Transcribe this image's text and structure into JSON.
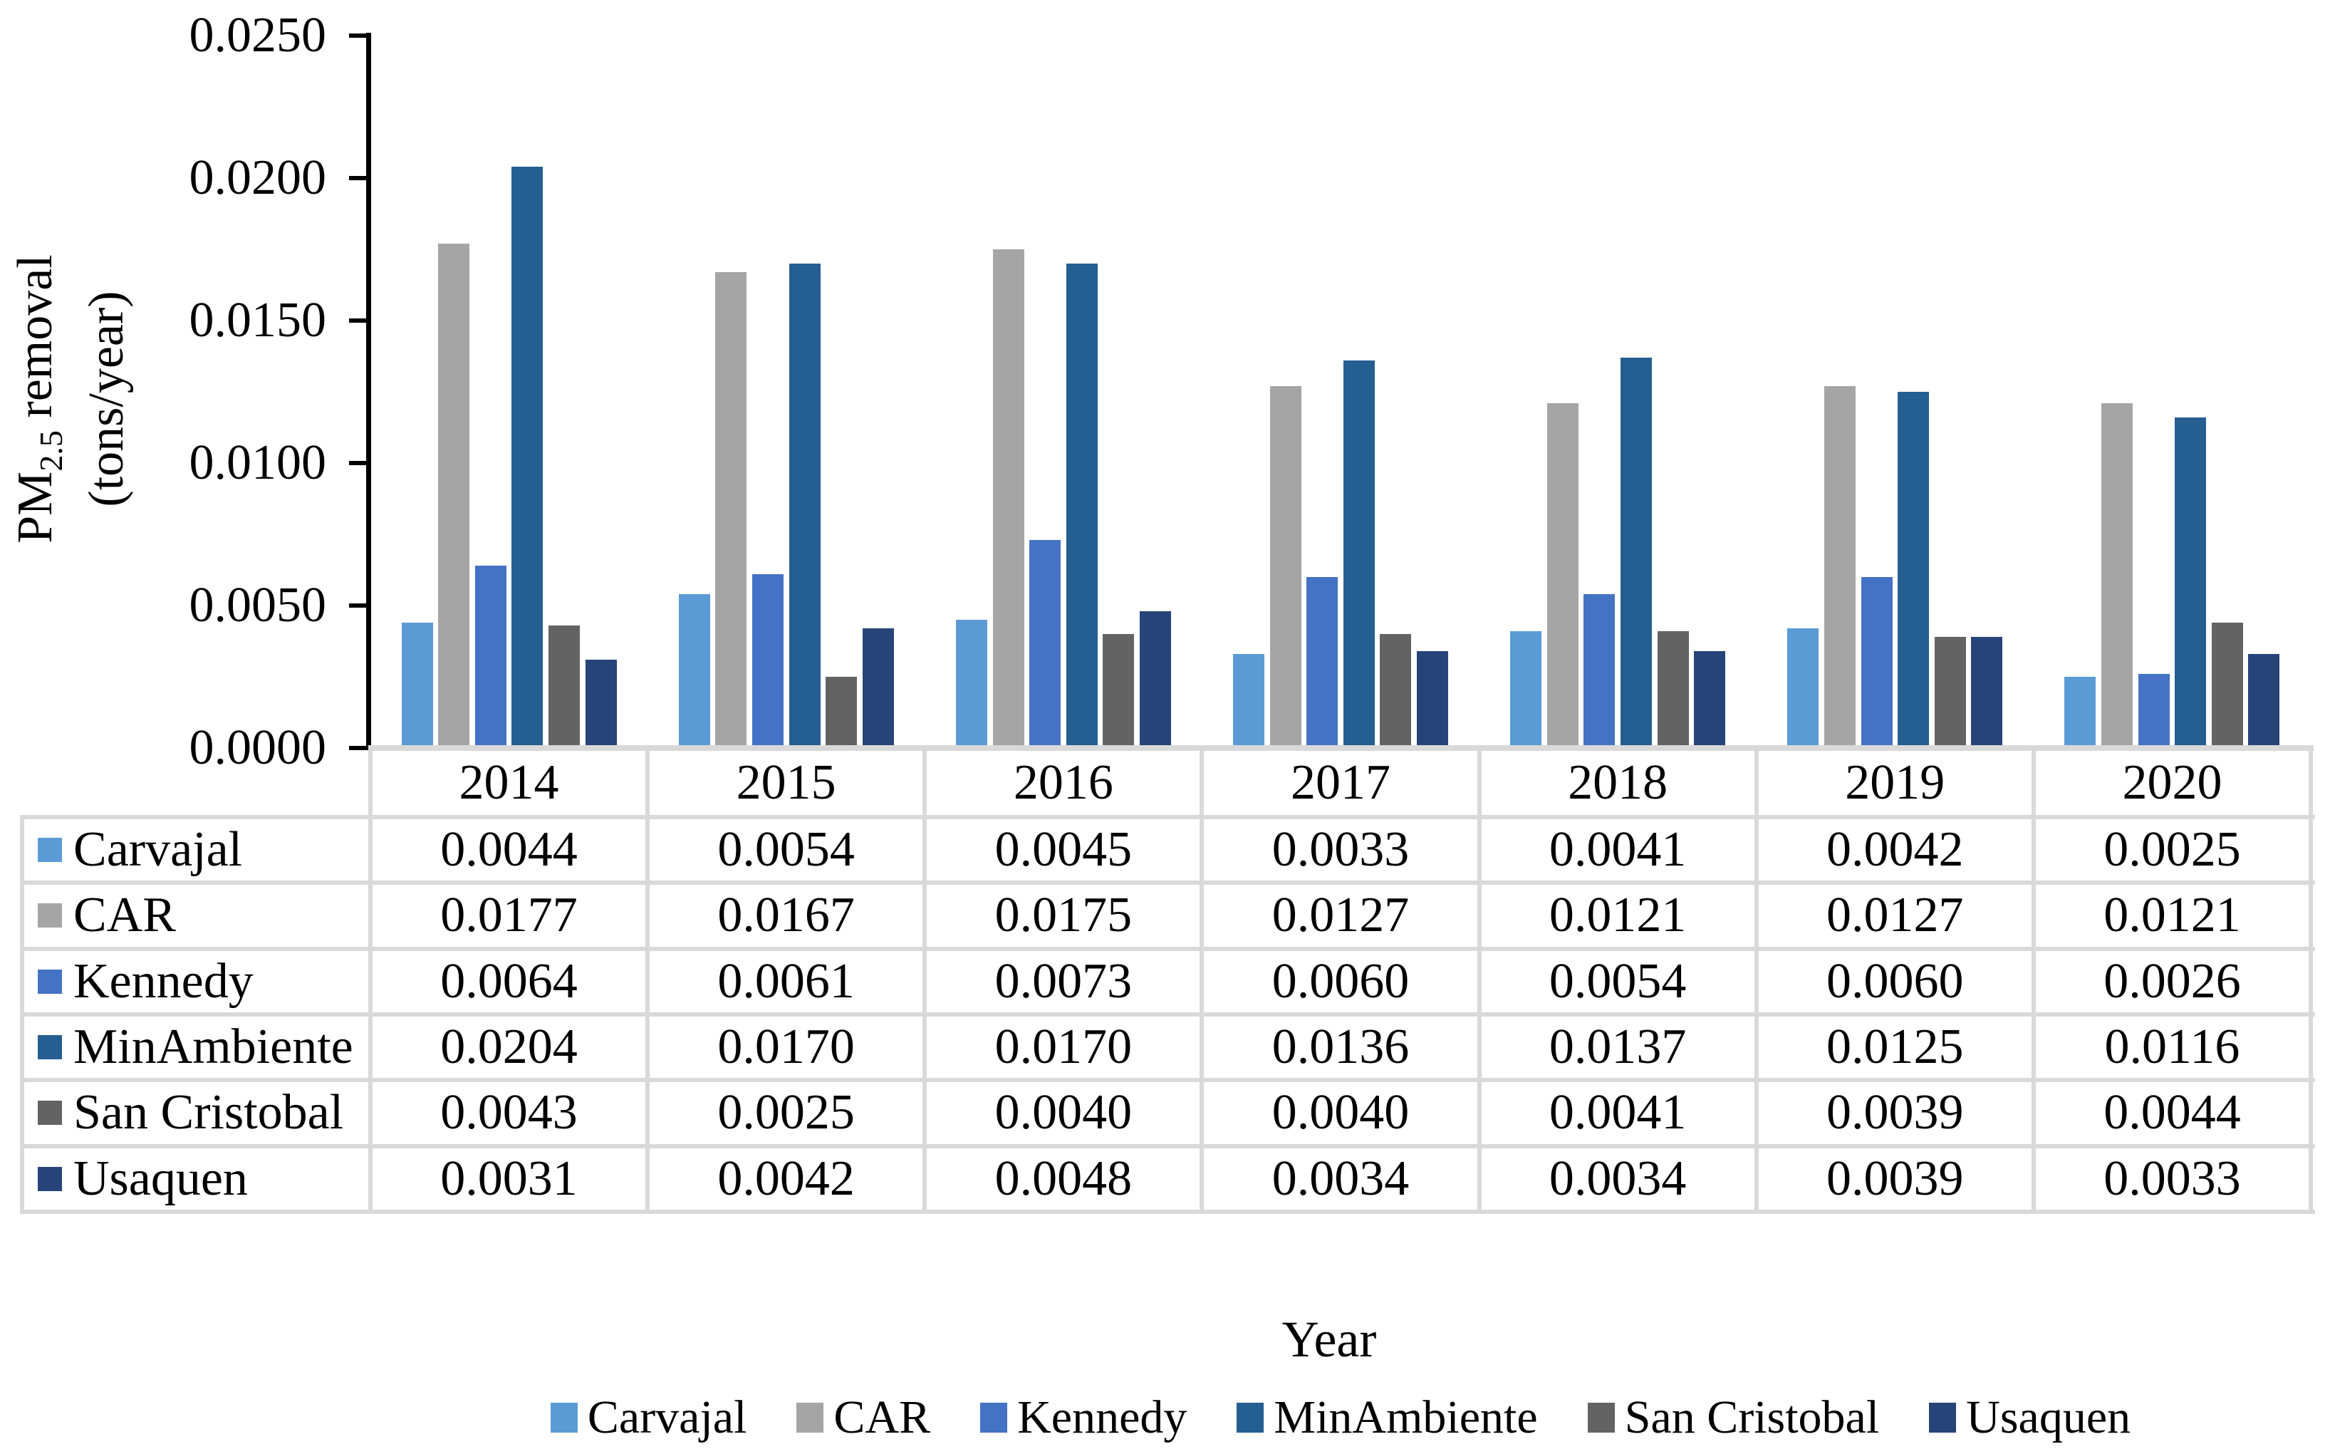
{
  "figure": {
    "y_axis_title_prefix": "PM",
    "y_axis_title_subscript": "2.5",
    "y_axis_title_suffix": " removal",
    "y_axis_title_line2": "(tons/year)",
    "x_axis_title": "Year"
  },
  "chart_data": {
    "type": "bar",
    "title": "",
    "xlabel": "Year",
    "ylabel": "PM2.5 removal (tons/year)",
    "ylim": [
      0,
      0.025
    ],
    "ytick_step": 0.005,
    "ytick_labels": [
      "0.0000",
      "0.0050",
      "0.0100",
      "0.0150",
      "0.0200",
      "0.0250"
    ],
    "grid": false,
    "legend_position": "bottom",
    "data_table_shown": true,
    "categories": [
      "2014",
      "2015",
      "2016",
      "2017",
      "2018",
      "2019",
      "2020"
    ],
    "series": [
      {
        "name": "Carvajal",
        "color": "#5B9BD5",
        "values": [
          0.0044,
          0.0054,
          0.0045,
          0.0033,
          0.0041,
          0.0042,
          0.0025
        ]
      },
      {
        "name": "CAR",
        "color": "#A5A5A5",
        "values": [
          0.0177,
          0.0167,
          0.0175,
          0.0127,
          0.0121,
          0.0127,
          0.0121
        ]
      },
      {
        "name": "Kennedy",
        "color": "#4472C4",
        "values": [
          0.0064,
          0.0061,
          0.0073,
          0.006,
          0.0054,
          0.006,
          0.0026
        ]
      },
      {
        "name": "MinAmbiente",
        "color": "#255E91",
        "values": [
          0.0204,
          0.017,
          0.017,
          0.0136,
          0.0137,
          0.0125,
          0.0116
        ]
      },
      {
        "name": "San Cristobal",
        "color": "#636363",
        "values": [
          0.0043,
          0.0025,
          0.004,
          0.004,
          0.0041,
          0.0039,
          0.0044
        ]
      },
      {
        "name": "Usaquen",
        "color": "#264478",
        "values": [
          0.0031,
          0.0042,
          0.0048,
          0.0034,
          0.0034,
          0.0039,
          0.0033
        ]
      }
    ],
    "value_decimals": 4,
    "colors": {
      "axis": "#000000",
      "table_border": "#D9D9D9",
      "text": "#000000",
      "background": "#FFFFFF"
    }
  }
}
